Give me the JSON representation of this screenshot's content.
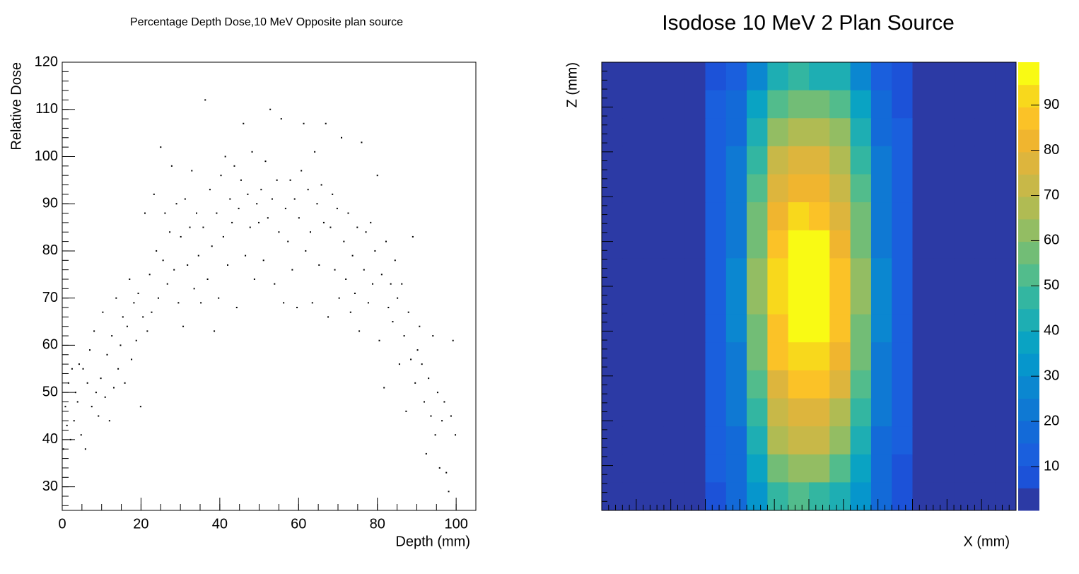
{
  "chart_data": [
    {
      "type": "scatter",
      "title": "Percentage Depth Dose,10 MeV Opposite plan source",
      "x_label": "Depth (mm)",
      "y_label": "Relative Dose",
      "color": "#000000",
      "xlim": [
        0,
        105
      ],
      "ylim": [
        25,
        120
      ],
      "xticks": [
        0,
        20,
        40,
        60,
        80,
        100
      ],
      "yticks": [
        30,
        40,
        50,
        60,
        70,
        80,
        90,
        100,
        110,
        120
      ],
      "x": [
        0.3,
        0.8,
        1.2,
        1.6,
        2.1,
        2.5,
        3,
        3.4,
        3.9,
        4.3,
        4.8,
        5.3,
        5.9,
        6.4,
        7,
        7.5,
        8.1,
        8.6,
        9.2,
        9.8,
        10.3,
        10.9,
        11.4,
        12,
        12.6,
        13.1,
        13.7,
        14.2,
        14.8,
        15.4,
        15.9,
        16.5,
        17.1,
        17.6,
        18.2,
        18.8,
        19.3,
        19.9,
        20.5,
        21,
        21.6,
        22.2,
        22.7,
        23.3,
        23.9,
        24.4,
        25,
        25.6,
        26.1,
        26.7,
        27.3,
        27.8,
        28.4,
        29,
        29.5,
        30.1,
        30.7,
        31.2,
        31.8,
        32.4,
        32.9,
        33.5,
        34.1,
        34.6,
        35.2,
        35.8,
        36.3,
        36.9,
        37.5,
        38,
        38.6,
        39.2,
        39.7,
        40.3,
        40.9,
        41.4,
        42,
        42.6,
        43.1,
        43.7,
        44.3,
        44.8,
        45.4,
        46,
        46.5,
        47.1,
        47.7,
        48.2,
        48.8,
        49.4,
        49.9,
        50.5,
        51.1,
        51.6,
        52.2,
        52.8,
        53.3,
        53.9,
        54.5,
        55,
        55.6,
        56.2,
        56.7,
        57.3,
        57.9,
        58.4,
        59,
        59.6,
        60.1,
        60.7,
        61.3,
        61.8,
        62.4,
        63,
        63.5,
        64.1,
        64.7,
        65.2,
        65.8,
        66.4,
        66.9,
        67.5,
        68.1,
        68.6,
        69.2,
        69.8,
        70.3,
        70.9,
        71.5,
        72,
        72.6,
        73.2,
        73.7,
        74.3,
        74.9,
        75.4,
        76,
        76.6,
        77.1,
        77.7,
        78.3,
        78.8,
        79.4,
        80,
        80.5,
        81.1,
        81.7,
        82.2,
        82.8,
        83.4,
        83.9,
        84.5,
        85.1,
        85.6,
        86.2,
        86.8,
        87.3,
        87.9,
        88.5,
        89,
        89.6,
        90.2,
        90.7,
        91.3,
        91.9,
        92.4,
        93,
        93.6,
        94.1,
        94.7,
        95.3,
        95.8,
        96.4,
        97,
        97.5,
        98.1,
        98.7,
        99.2,
        99.8
      ],
      "values": [
        38,
        47,
        43,
        52,
        40,
        55,
        44,
        50,
        48,
        56,
        41,
        55,
        38,
        52,
        59,
        47,
        63,
        50,
        45,
        53,
        67,
        49,
        58,
        44,
        62,
        51,
        70,
        55,
        60,
        66,
        52,
        64,
        74,
        57,
        69,
        61,
        71,
        47,
        66,
        88,
        63,
        75,
        67,
        92,
        80,
        70,
        102,
        78,
        88,
        73,
        84,
        98,
        76,
        90,
        69,
        83,
        64,
        91,
        77,
        85,
        97,
        72,
        88,
        79,
        69,
        85,
        112,
        74,
        93,
        81,
        63,
        88,
        70,
        96,
        83,
        100,
        77,
        91,
        86,
        98,
        68,
        89,
        95,
        107,
        79,
        92,
        85,
        101,
        74,
        90,
        86,
        93,
        78,
        99,
        87,
        110,
        91,
        73,
        95,
        84,
        108,
        69,
        89,
        82,
        95,
        76,
        91,
        68,
        87,
        97,
        107,
        80,
        93,
        84,
        69,
        101,
        90,
        77,
        94,
        86,
        107,
        66,
        85,
        92,
        76,
        89,
        70,
        104,
        82,
        74,
        88,
        67,
        79,
        71,
        85,
        63,
        103,
        76,
        84,
        69,
        86,
        73,
        80,
        96,
        61,
        75,
        51,
        82,
        68,
        73,
        65,
        78,
        70,
        56,
        73,
        62,
        46,
        67,
        57,
        83,
        52,
        59,
        64,
        56,
        48,
        37,
        53,
        45,
        62,
        41,
        50,
        34,
        44,
        48,
        33,
        29,
        45,
        61,
        41
      ]
    },
    {
      "type": "heatmap",
      "title": "Isodose 10 MeV 2 Plan Source",
      "x_label": "X (mm)",
      "y_label": "Z (mm)",
      "zlim": [
        0.3,
        99.5
      ],
      "zticks": [
        10,
        20,
        30,
        40,
        50,
        60,
        70,
        80,
        90
      ],
      "colors": [
        "#2c3aa5",
        "#1c52d8",
        "#1a5fdd",
        "#136ad8",
        "#0f79d3",
        "#0b87d0",
        "#0696cc",
        "#0aa3c3",
        "#1eaeb3",
        "#33b6a1",
        "#52bc8c",
        "#72bd76",
        "#93bd63",
        "#b0bb53",
        "#c8b848",
        "#ddb53d",
        "#f0b52f",
        "#fbc227",
        "#f8d81c",
        "#f9fa14"
      ],
      "z": [
        [
          1,
          1,
          1,
          1,
          1,
          10,
          15,
          30,
          42,
          45,
          44,
          40,
          28,
          15,
          10,
          1,
          1,
          1,
          1,
          1
        ],
        [
          1,
          1,
          1,
          1,
          1,
          11,
          18,
          38,
          54,
          59,
          58,
          52,
          37,
          18,
          10,
          1,
          1,
          1,
          1,
          1
        ],
        [
          1,
          1,
          1,
          1,
          1,
          12,
          20,
          43,
          63,
          69,
          68,
          60,
          42,
          20,
          11,
          1,
          1,
          1,
          1,
          1
        ],
        [
          1,
          1,
          1,
          1,
          1,
          12,
          22,
          47,
          70,
          77,
          75,
          67,
          47,
          21,
          11,
          1,
          1,
          1,
          1,
          1
        ],
        [
          1,
          1,
          1,
          1,
          1,
          13,
          23,
          51,
          76,
          84,
          82,
          73,
          51,
          22,
          12,
          1,
          1,
          1,
          1,
          1
        ],
        [
          1,
          1,
          1,
          1,
          1,
          13,
          24,
          55,
          83,
          91,
          89,
          79,
          55,
          24,
          12,
          1,
          1,
          1,
          1,
          1
        ],
        [
          1,
          1,
          1,
          1,
          1,
          13,
          25,
          58,
          88,
          97,
          95,
          84,
          58,
          25,
          12,
          1,
          1,
          1,
          1,
          1
        ],
        [
          1,
          1,
          1,
          1,
          1,
          13,
          26,
          60,
          90,
          99,
          97,
          86,
          60,
          26,
          12,
          1,
          1,
          1,
          1,
          1
        ],
        [
          1,
          1,
          1,
          1,
          1,
          13,
          26,
          60,
          90,
          98,
          97,
          86,
          60,
          26,
          12,
          1,
          1,
          1,
          1,
          1
        ],
        [
          1,
          1,
          1,
          1,
          1,
          13,
          26,
          59,
          89,
          98,
          96,
          85,
          59,
          26,
          12,
          1,
          1,
          1,
          1,
          1
        ],
        [
          1,
          1,
          1,
          1,
          1,
          13,
          25,
          57,
          86,
          94,
          92,
          82,
          57,
          25,
          12,
          1,
          1,
          1,
          1,
          1
        ],
        [
          1,
          1,
          1,
          1,
          1,
          13,
          23,
          53,
          79,
          87,
          85,
          76,
          53,
          23,
          12,
          1,
          1,
          1,
          1,
          1
        ],
        [
          1,
          1,
          1,
          1,
          1,
          12,
          22,
          48,
          72,
          79,
          78,
          69,
          48,
          21,
          11,
          1,
          1,
          1,
          1,
          1
        ],
        [
          1,
          1,
          1,
          1,
          1,
          12,
          20,
          43,
          65,
          71,
          70,
          62,
          43,
          20,
          11,
          1,
          1,
          1,
          1,
          1
        ],
        [
          1,
          1,
          1,
          1,
          1,
          11,
          18,
          37,
          56,
          61,
          60,
          53,
          37,
          18,
          10,
          1,
          1,
          1,
          1,
          1
        ],
        [
          1,
          1,
          1,
          1,
          1,
          10,
          16,
          32,
          45,
          50,
          49,
          43,
          32,
          16,
          10,
          1,
          1,
          1,
          1,
          1
        ]
      ]
    }
  ]
}
